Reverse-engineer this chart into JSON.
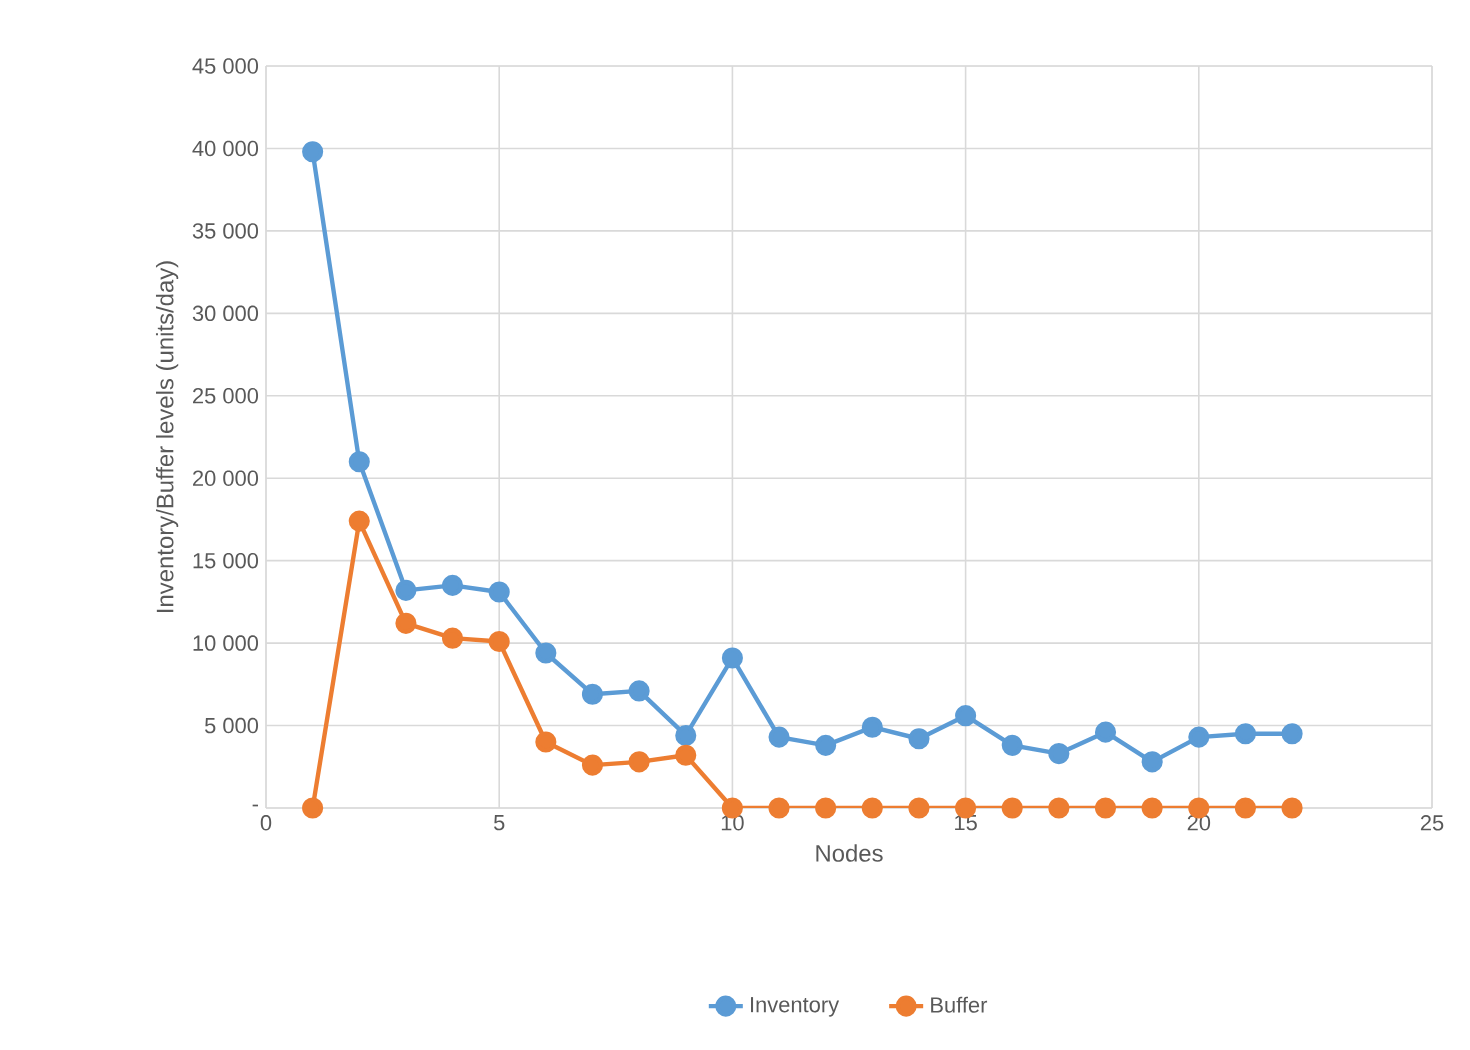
{
  "chart_data": {
    "type": "line",
    "xlabel": "Nodes",
    "ylabel": "Inventory/Buffer levels (units/day)",
    "x": [
      1,
      2,
      3,
      4,
      5,
      6,
      7,
      8,
      9,
      10,
      11,
      12,
      13,
      14,
      15,
      16,
      17,
      18,
      19,
      20,
      21,
      22
    ],
    "series": [
      {
        "name": "Inventory",
        "color": "#5b9bd5",
        "values": [
          39800,
          21000,
          13200,
          13500,
          13100,
          9400,
          6900,
          7100,
          4400,
          9100,
          4300,
          3800,
          4900,
          4200,
          5600,
          3800,
          3300,
          4600,
          2800,
          4300,
          4500,
          4500
        ]
      },
      {
        "name": "Buffer",
        "color": "#ed7d31",
        "values": [
          0,
          17400,
          11200,
          10300,
          10100,
          4000,
          2600,
          2800,
          3200,
          0,
          0,
          0,
          0,
          0,
          0,
          0,
          0,
          0,
          0,
          0,
          0,
          0
        ]
      }
    ],
    "xlim": [
      0,
      25
    ],
    "xticks": [
      0,
      5,
      10,
      15,
      20,
      25
    ],
    "ylim": [
      0,
      45000
    ],
    "yticks": [
      {
        "value": 0,
        "label": "-"
      },
      {
        "value": 5000,
        "label": "5 000"
      },
      {
        "value": 10000,
        "label": "10 000"
      },
      {
        "value": 15000,
        "label": "15 000"
      },
      {
        "value": 20000,
        "label": "20 000"
      },
      {
        "value": 25000,
        "label": "25 000"
      },
      {
        "value": 30000,
        "label": "30 000"
      },
      {
        "value": 35000,
        "label": "35 000"
      },
      {
        "value": 40000,
        "label": "40 000"
      },
      {
        "value": 45000,
        "label": "45 000"
      }
    ],
    "grid": true,
    "legend": "bottom",
    "marker": "circle",
    "line_style": "solid"
  }
}
